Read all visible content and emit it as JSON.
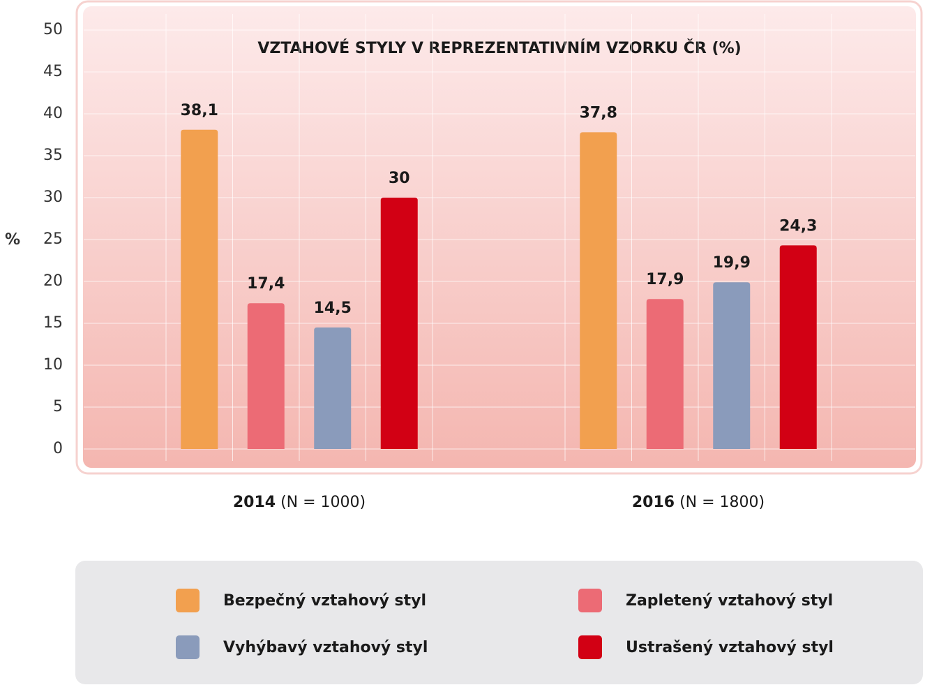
{
  "chart_data": {
    "type": "bar",
    "title": "VZTAHOVÉ STYLY V REPREZENTATIVNÍM VZORKU ČR (%)",
    "y_label": "%",
    "categories": [
      "2014 (N = 1000)",
      "2016 (N = 1800)"
    ],
    "series": [
      {
        "name": "Bezpečný vztahový styl",
        "color": "#f2a04f",
        "values": [
          38.1,
          37.8
        ],
        "value_labels": [
          "38,1",
          "37,8"
        ]
      },
      {
        "name": "Zapletený vztahový styl",
        "color": "#ec6b75",
        "values": [
          17.4,
          17.9
        ],
        "value_labels": [
          "17,4",
          "17,9"
        ]
      },
      {
        "name": "Vyhýbavý vztahový styl",
        "color": "#8a9bbb",
        "values": [
          14.5,
          19.9
        ],
        "value_labels": [
          "14,5",
          "19,9"
        ]
      },
      {
        "name": "Ustrašený vztahový styl",
        "color": "#d20014",
        "values": [
          30,
          24.3
        ],
        "value_labels": [
          "30",
          "24,3"
        ]
      }
    ],
    "ylim": [
      0,
      50
    ],
    "yticks": [
      0,
      5,
      10,
      15,
      20,
      25,
      30,
      35,
      40,
      45,
      50
    ],
    "grid": true
  }
}
